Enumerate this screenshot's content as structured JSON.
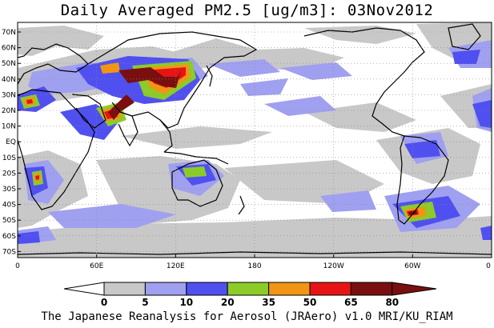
{
  "title": "Daily Averaged PM2.5 [ug/m3]: 03Nov2012",
  "footer": "The Japanese Reanalysis for Aerosol (JRAero) v1.0 MRI/KU_RIAM",
  "lat_labels": [
    "70N",
    "60N",
    "50N",
    "40N",
    "30N",
    "20N",
    "10N",
    "EQ",
    "10S",
    "20S",
    "30S",
    "40S",
    "50S",
    "60S",
    "70S"
  ],
  "lon_labels": [
    "0",
    "60E",
    "120E",
    "180",
    "120W",
    "60W",
    "0"
  ],
  "colorbar": {
    "boundaries": [
      "0",
      "5",
      "10",
      "20",
      "35",
      "50",
      "65",
      "80"
    ],
    "colors": [
      "#ffffff",
      "#c8c8c8",
      "#a0a0f0",
      "#5050f0",
      "#8ccc28",
      "#f09614",
      "#e61414",
      "#7a0f0f"
    ]
  }
}
